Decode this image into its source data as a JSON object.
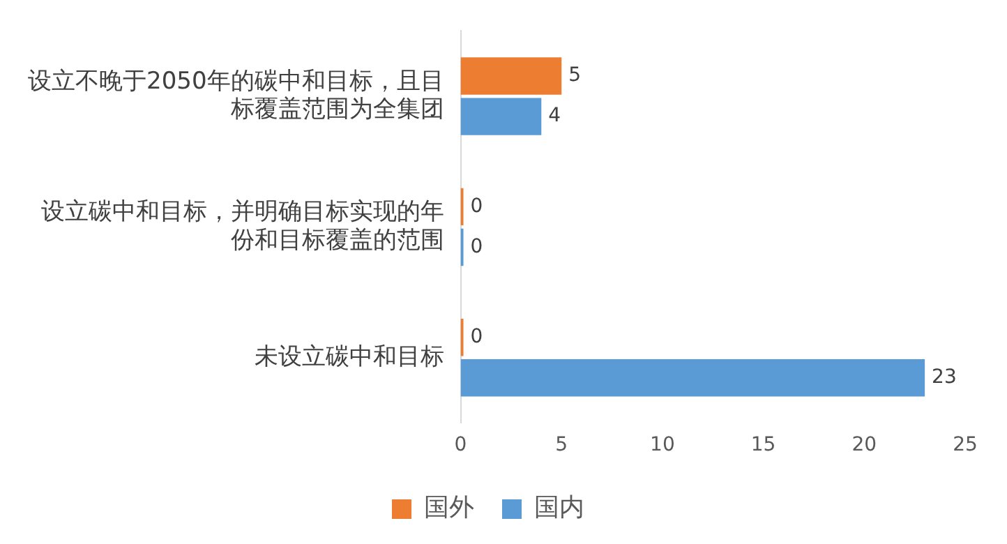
{
  "chart_data": {
    "type": "bar",
    "orientation": "horizontal",
    "categories": [
      "设立不晚于2050年的碳中和目标，且目标覆盖范围为全集团",
      "设立碳中和目标，并明确目标实现的年份和目标覆盖的范围",
      "未设立碳中和目标"
    ],
    "series": [
      {
        "name": "国外",
        "color": "#ed7d31",
        "values": [
          5,
          0,
          0
        ]
      },
      {
        "name": "国内",
        "color": "#5b9bd5",
        "values": [
          4,
          0,
          23
        ]
      }
    ],
    "xlim": [
      0,
      25
    ],
    "xticks": [
      0,
      5,
      10,
      15,
      20,
      25
    ],
    "grid": false,
    "legend": "bottom",
    "data_labels": true
  }
}
